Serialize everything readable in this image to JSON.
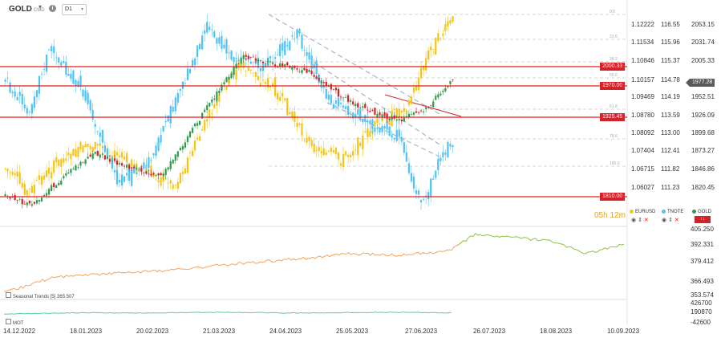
{
  "header": {
    "symbol": "GOLD",
    "symbol_sub": "CMD",
    "info_icon": "info-icon",
    "timeframe": "D1"
  },
  "price_axis_gold": [
    "2053.15",
    "2031.74",
    "2005.33",
    "1977.28",
    "1952.51",
    "1926.09",
    "1899.68",
    "1873.27",
    "1846.86",
    "1820.45"
  ],
  "price_axis_tnote": [
    "116.55",
    "115.96",
    "115.37",
    "114.78",
    "114.19",
    "113.59",
    "113.00",
    "112.41",
    "111.82",
    "111.23"
  ],
  "price_axis_eurusd": [
    "1.12222",
    "1.11534",
    "1.10846",
    "1.10157",
    "1.09469",
    "1.08780",
    "1.08092",
    "1.07404",
    "1.06715",
    "1.06027"
  ],
  "current_price_tag": "1977.28",
  "levels": [
    {
      "label": "2000.33"
    },
    {
      "label": "1970.00"
    },
    {
      "label": "1925.45"
    },
    {
      "label": "1810.00"
    }
  ],
  "fib_labels": [
    "0.0",
    "23.6",
    "38.2",
    "50.0",
    "61.8",
    "78.6",
    "100.0"
  ],
  "legend": {
    "eurusd": "EURUSD",
    "tnote": "TNOTE",
    "gold": "GOLD",
    "gold_flag": "↑↓"
  },
  "countdown": "05h 12m",
  "seasonal": {
    "title": "Seasonal Trends",
    "param": "[5]",
    "value": "365.507",
    "axis": [
      "405.250",
      "392.331",
      "379.412",
      "366.493",
      "353.574"
    ]
  },
  "momentum": {
    "title": "MOT",
    "axis": [
      "426700",
      "190870",
      "-42600"
    ]
  },
  "x_axis": [
    "14.12.2022",
    "18.01.2023",
    "20.02.2023",
    "21.03.2023",
    "24.04.2023",
    "25.05.2023",
    "27.06.2023",
    "26.07.2023",
    "18.08.2023",
    "10.09.2023"
  ],
  "colors": {
    "eurusd": "#f5c518",
    "tnote": "#4fc3f7",
    "gold_up": "#2e9c4a",
    "gold_down": "#d2232a",
    "level": "#e0201b",
    "seasonal_past": "#f7a35c",
    "seasonal_future": "#8cc63f",
    "momentum": "#5ccf9a"
  }
}
